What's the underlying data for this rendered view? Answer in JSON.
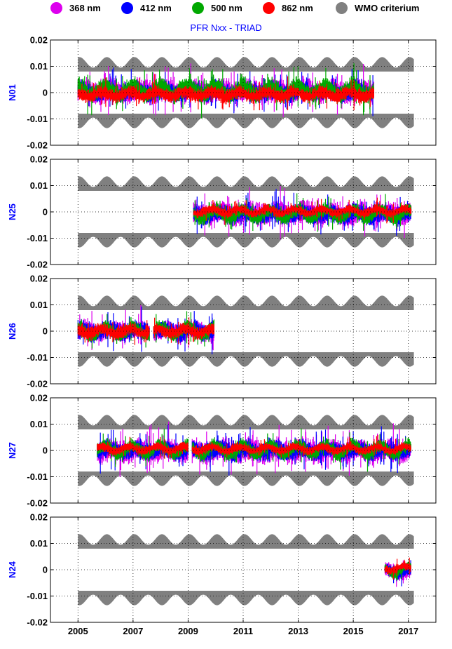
{
  "colors": {
    "368": "#dd00ee",
    "412": "#0000ff",
    "500": "#00a800",
    "862": "#ff0000",
    "wmo": "#808080"
  },
  "legend": [
    {
      "label": "368 nm",
      "color": "#dd00ee"
    },
    {
      "label": "412 nm",
      "color": "#0000ff"
    },
    {
      "label": "500 nm",
      "color": "#00a800"
    },
    {
      "label": "862 nm",
      "color": "#ff0000"
    },
    {
      "label": "WMO criterium",
      "color": "#808080"
    }
  ],
  "chart_data": {
    "type": "scatter",
    "title": "PFR Nxx - TRIAD",
    "xlim": [
      2004,
      2018
    ],
    "ylim": [
      -0.02,
      0.02
    ],
    "xticks": [
      2005,
      2007,
      2009,
      2011,
      2013,
      2015,
      2017
    ],
    "xtick_labels": [
      "2005",
      "2007",
      "2009",
      "2011",
      "2013",
      "2015",
      "2017"
    ],
    "yticks": [
      0.02,
      0.01,
      0,
      -0.01,
      -0.02
    ],
    "ytick_labels": [
      "0.02",
      "0.01",
      "0",
      "-0.01",
      "-0.02"
    ],
    "grid": true,
    "wmo_criterium": {
      "inner_bound": 0.008,
      "outer_bound_range": [
        0.0095,
        0.0135
      ],
      "period_years": 1,
      "range": [
        2005,
        2017.2
      ]
    },
    "panels": [
      {
        "ylabel": "N01",
        "segments": [
          [
            2005.0,
            2015.75
          ]
        ],
        "series": [
          {
            "name": "368 nm",
            "spread": 0.005,
            "offset": 0.001
          },
          {
            "name": "412 nm",
            "spread": 0.004,
            "offset": 0.0005
          },
          {
            "name": "500 nm",
            "spread": 0.004,
            "offset": 0.0015
          },
          {
            "name": "862 nm",
            "spread": 0.003,
            "offset": -0.001
          }
        ]
      },
      {
        "ylabel": "N25",
        "segments": [
          [
            2009.2,
            2017.1
          ]
        ],
        "series": [
          {
            "name": "368 nm",
            "spread": 0.005,
            "offset": -0.001
          },
          {
            "name": "412 nm",
            "spread": 0.004,
            "offset": -0.0015
          },
          {
            "name": "500 nm",
            "spread": 0.003,
            "offset": -0.0015
          },
          {
            "name": "862 nm",
            "spread": 0.002,
            "offset": 0.0005
          }
        ]
      },
      {
        "ylabel": "N26",
        "segments": [
          [
            2005.0,
            2007.6
          ],
          [
            2007.75,
            2009.95
          ]
        ],
        "series": [
          {
            "name": "368 nm",
            "spread": 0.004,
            "offset": 0.0
          },
          {
            "name": "412 nm",
            "spread": 0.004,
            "offset": 0.0
          },
          {
            "name": "500 nm",
            "spread": 0.003,
            "offset": 0.0
          },
          {
            "name": "862 nm",
            "spread": 0.003,
            "offset": 0.0
          }
        ]
      },
      {
        "ylabel": "N27",
        "segments": [
          [
            2005.7,
            2009.0
          ],
          [
            2009.15,
            2017.1
          ]
        ],
        "series": [
          {
            "name": "368 nm",
            "spread": 0.005,
            "offset": -0.0005
          },
          {
            "name": "412 nm",
            "spread": 0.004,
            "offset": 0.0
          },
          {
            "name": "500 nm",
            "spread": 0.003,
            "offset": 0.0005
          },
          {
            "name": "862 nm",
            "spread": 0.002,
            "offset": 0.001
          }
        ]
      },
      {
        "ylabel": "N24",
        "segments": [
          [
            2016.15,
            2017.1
          ]
        ],
        "series": [
          {
            "name": "368 nm",
            "spread": 0.003,
            "offset": -0.001
          },
          {
            "name": "412 nm",
            "spread": 0.003,
            "offset": -0.001
          },
          {
            "name": "500 nm",
            "spread": 0.002,
            "offset": 0.0
          },
          {
            "name": "862 nm",
            "spread": 0.002,
            "offset": 0.001
          }
        ]
      }
    ]
  }
}
